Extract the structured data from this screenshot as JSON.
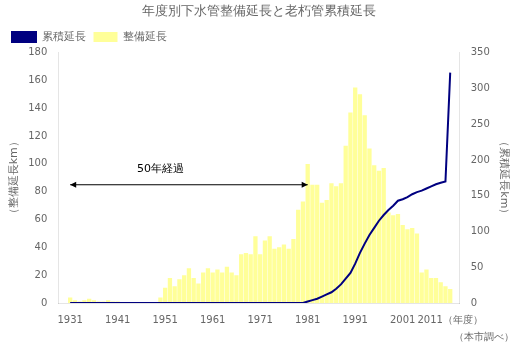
{
  "chart_data": {
    "type": "bar",
    "title": "年度別下水管整備延長と老朽管累積延長",
    "y_label": "（整備延長km）",
    "y2_label": "（累積延長km）",
    "source": "（本市調べ）",
    "x": [
      1931,
      1932,
      1933,
      1934,
      1935,
      1936,
      1937,
      1938,
      1939,
      1940,
      1941,
      1942,
      1943,
      1944,
      1945,
      1946,
      1947,
      1948,
      1949,
      1950,
      1951,
      1952,
      1953,
      1954,
      1955,
      1956,
      1957,
      1958,
      1959,
      1960,
      1961,
      1962,
      1963,
      1964,
      1965,
      1966,
      1967,
      1968,
      1969,
      1970,
      1971,
      1972,
      1973,
      1974,
      1975,
      1976,
      1977,
      1978,
      1979,
      1980,
      1981,
      1982,
      1983,
      1984,
      1985,
      1986,
      1987,
      1988,
      1989,
      1990,
      1991,
      1992,
      1993,
      1994,
      1995,
      1996,
      1997,
      1998,
      1999,
      2000,
      2001,
      2002,
      2003,
      2004,
      2005,
      2006,
      2007,
      2008,
      2009,
      2010,
      2011
    ],
    "series": [
      {
        "name": "整備延長",
        "type": "bar",
        "color": "#FFFF99",
        "values": [
          4,
          2,
          1,
          2,
          3,
          2,
          1,
          1,
          2,
          1,
          1,
          0,
          0,
          0,
          0,
          0,
          0,
          0,
          0,
          4,
          11,
          18,
          12,
          17,
          20,
          25,
          18,
          14,
          22,
          25,
          22,
          24,
          22,
          26,
          22,
          20,
          35,
          36,
          35,
          48,
          35,
          45,
          48,
          39,
          40,
          42,
          39,
          46,
          67,
          73,
          100,
          85,
          85,
          72,
          74,
          86,
          84,
          86,
          113,
          137,
          155,
          150,
          135,
          111,
          99,
          95,
          97,
          65,
          63,
          64,
          56,
          53,
          54,
          50,
          22,
          24,
          18,
          18,
          15,
          12,
          10
        ]
      },
      {
        "name": "累積延長",
        "type": "line",
        "color": "#000080",
        "axis": "y2",
        "values": [
          0,
          0,
          0,
          0,
          0,
          0,
          0,
          0,
          0,
          0,
          0,
          0,
          0,
          0,
          0,
          0,
          0,
          0,
          0,
          0,
          0,
          0,
          0,
          0,
          0,
          0,
          0,
          0,
          0,
          0,
          0,
          0,
          0,
          0,
          0,
          0,
          0,
          0,
          0,
          0,
          0,
          0,
          0,
          0,
          0,
          0,
          0,
          0,
          0,
          0,
          2,
          4,
          6,
          9,
          12,
          15,
          20,
          26,
          34,
          42,
          55,
          70,
          83,
          95,
          105,
          115,
          123,
          130,
          136,
          143,
          145,
          148,
          152,
          155,
          157,
          160,
          163,
          166,
          168,
          170,
          322
        ]
      }
    ],
    "xlim": [
      1928.5,
      2013
    ],
    "xticks": [
      1931,
      1941,
      1951,
      1961,
      1971,
      1981,
      1991,
      2001,
      {
        "value": 2011,
        "label": "2011（年度）"
      }
    ],
    "ylim": [
      0,
      180
    ],
    "yticks": [
      0,
      20,
      40,
      60,
      80,
      100,
      120,
      140,
      160,
      180
    ],
    "y2lim": [
      0,
      350
    ],
    "y2ticks": [
      0,
      50,
      100,
      150,
      200,
      250,
      300,
      350
    ],
    "annotations": [
      {
        "text": "50年経過",
        "x": 1950,
        "y": 92,
        "arrow_x": [
          1931,
          1981
        ],
        "arrow_y": 85
      }
    ],
    "legend": "upper left",
    "grid": false
  }
}
